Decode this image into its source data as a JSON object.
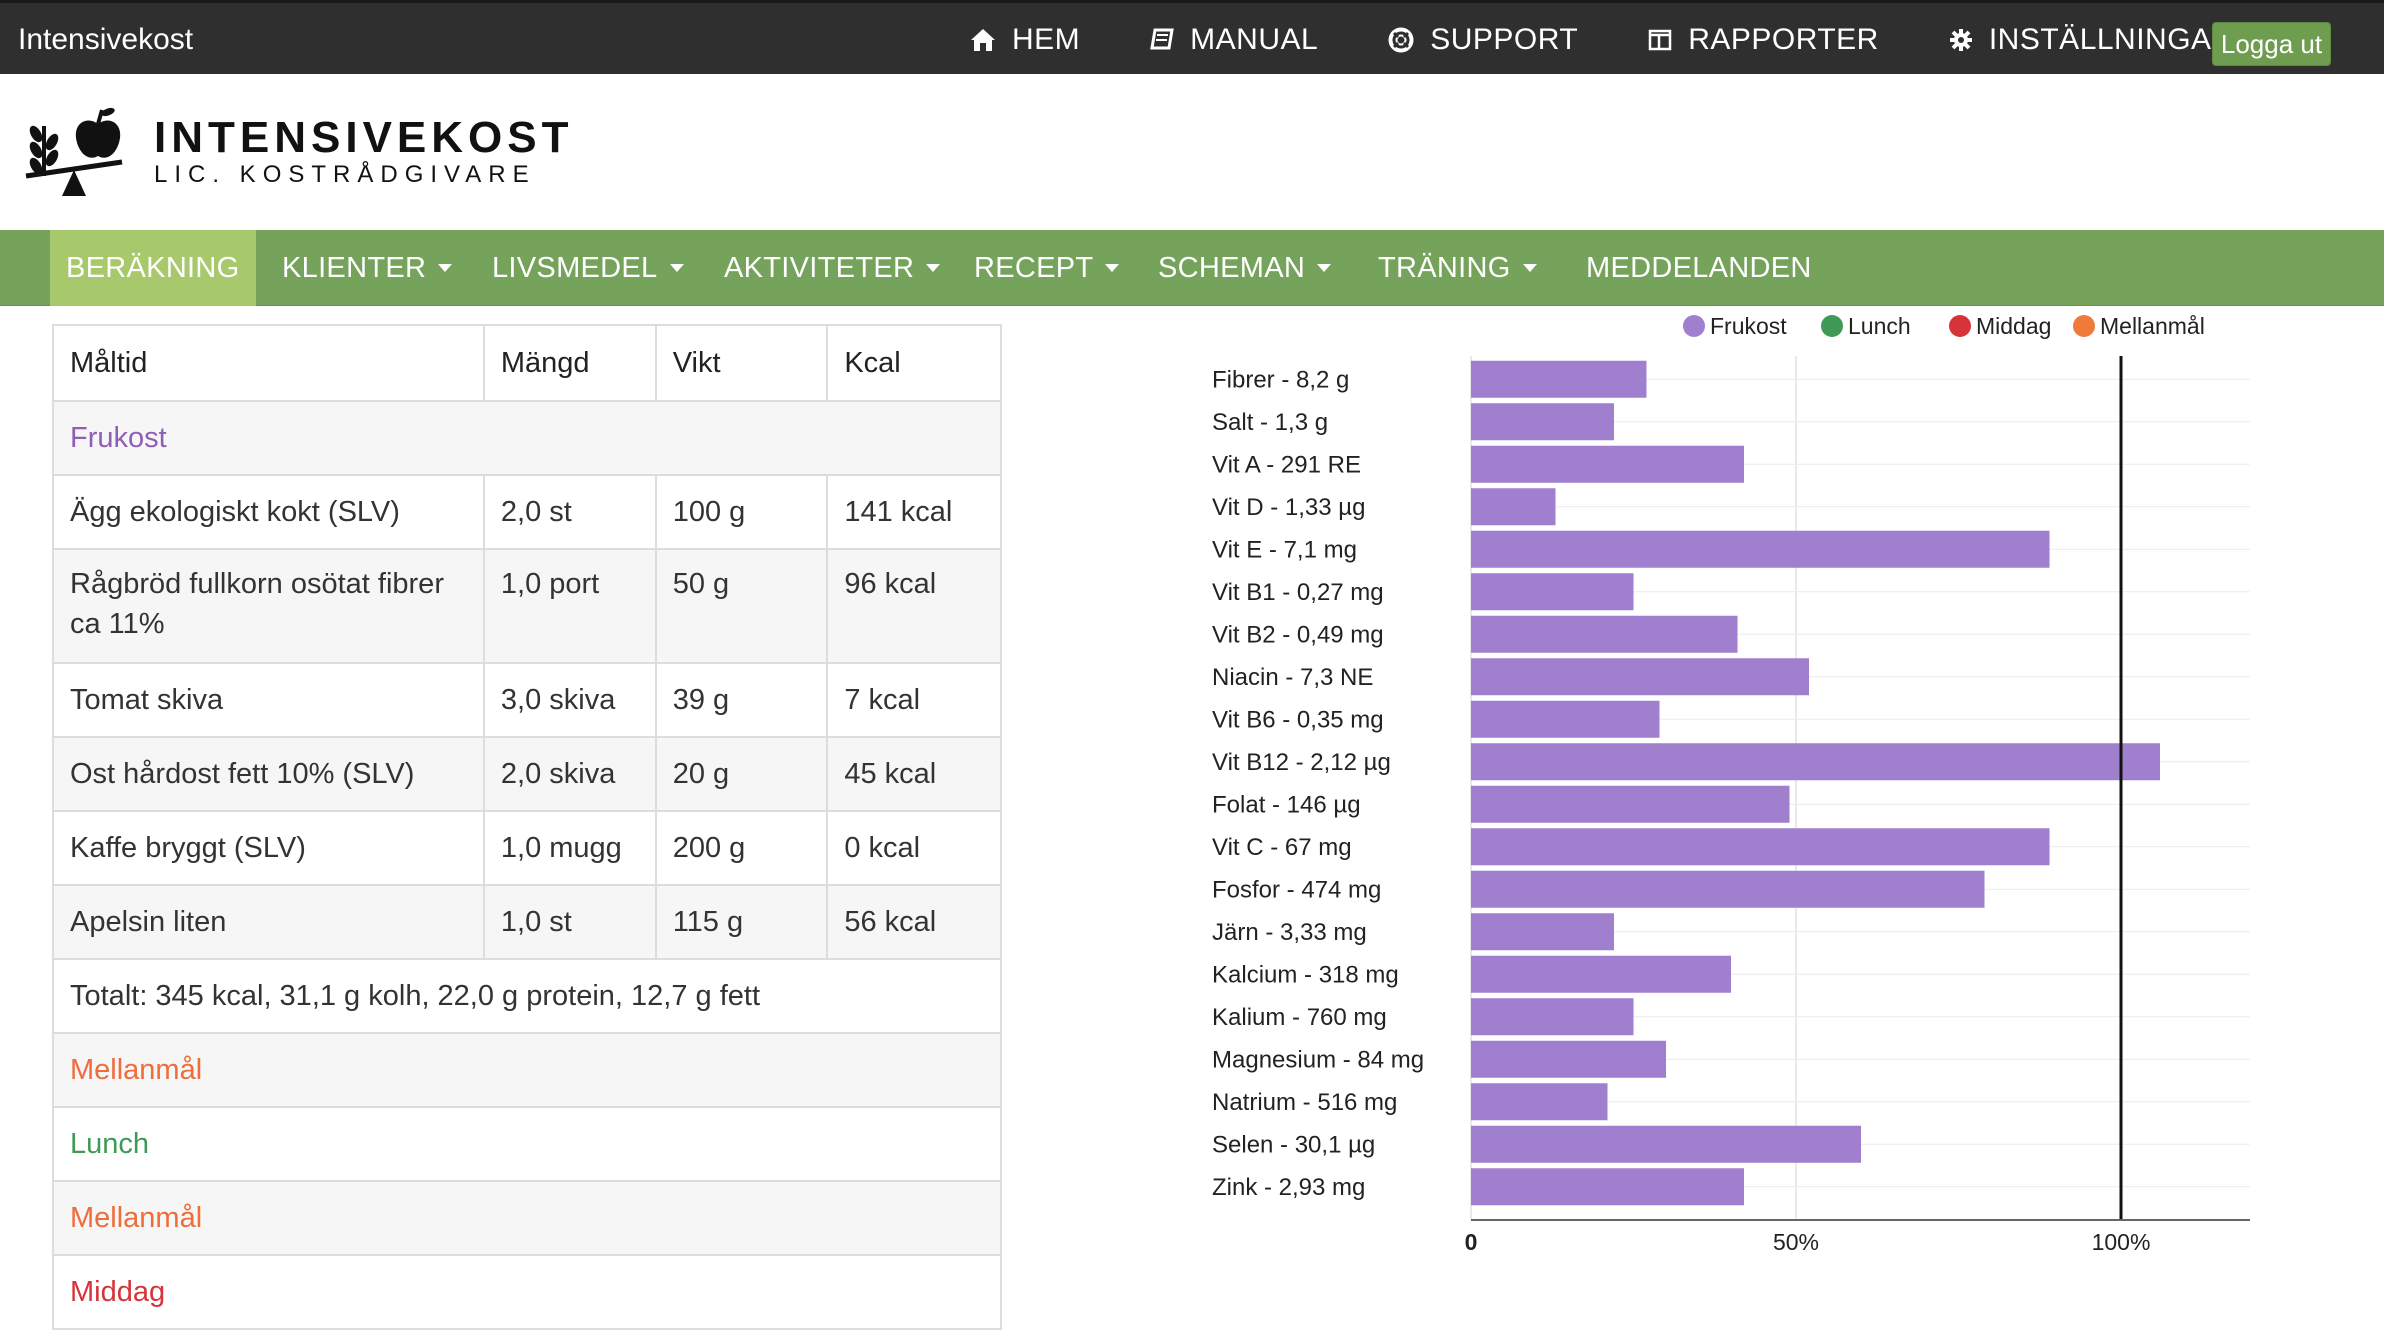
{
  "topbar": {
    "brand": "Intensivekost",
    "nav": [
      {
        "label": "HEM",
        "icon": "home-icon"
      },
      {
        "label": "MANUAL",
        "icon": "book-icon"
      },
      {
        "label": "SUPPORT",
        "icon": "lifebuoy-icon"
      },
      {
        "label": "RAPPORTER",
        "icon": "columns-icon"
      },
      {
        "label": "INSTÄLLNINGAR",
        "icon": "gear-icon"
      }
    ],
    "logout": "Logga ut"
  },
  "logo": {
    "title": "INTENSIVEKOST",
    "subtitle": "LIC. KOSTRÅDGIVARE"
  },
  "mainnav": [
    {
      "label": "BERÄKNING",
      "dropdown": false
    },
    {
      "label": "KLIENTER",
      "dropdown": true
    },
    {
      "label": "LIVSMEDEL",
      "dropdown": true
    },
    {
      "label": "AKTIVITETER",
      "dropdown": true
    },
    {
      "label": "RECEPT",
      "dropdown": true
    },
    {
      "label": "SCHEMAN",
      "dropdown": true
    },
    {
      "label": "TRÄNING",
      "dropdown": true
    },
    {
      "label": "MEDDELANDEN",
      "dropdown": false
    }
  ],
  "table": {
    "headers": [
      "Måltid",
      "Mängd",
      "Vikt",
      "Kcal"
    ],
    "frukost_label": "Frukost",
    "rows": [
      {
        "name": "Ägg ekologiskt kokt (SLV)",
        "amount": "2,0 st",
        "weight": "100 g",
        "kcal": "141 kcal"
      },
      {
        "name": "Rågbröd fullkorn osötat fibrer ca 11%",
        "amount": "1,0 port",
        "weight": "50 g",
        "kcal": "96 kcal"
      },
      {
        "name": "Tomat skiva",
        "amount": "3,0 skiva",
        "weight": "39 g",
        "kcal": "7 kcal"
      },
      {
        "name": "Ost hårdost fett 10% (SLV)",
        "amount": "2,0 skiva",
        "weight": "20 g",
        "kcal": "45 kcal"
      },
      {
        "name": "Kaffe bryggt (SLV)",
        "amount": "1,0 mugg",
        "weight": "200 g",
        "kcal": "0 kcal"
      },
      {
        "name": "Apelsin liten",
        "amount": "1,0 st",
        "weight": "115 g",
        "kcal": "56 kcal"
      }
    ],
    "total": "Totalt: 345 kcal, 31,1 g kolh, 22,0 g protein, 12,7 g fett",
    "meals_after": [
      "Mellanmål",
      "Lunch",
      "Mellanmål",
      "Middag"
    ]
  },
  "colors": {
    "frukost": "#a07fcf",
    "lunch": "#3f9a57",
    "middag": "#d6343a",
    "mellanmal": "#ef7a3b"
  },
  "chart_data": {
    "type": "bar",
    "orientation": "horizontal",
    "legend": [
      "Frukost",
      "Lunch",
      "Middag",
      "Mellanmål"
    ],
    "legend_position": "top-right",
    "categories": [
      "Fibrer - 8,2 g",
      "Salt - 1,3 g",
      "Vit A - 291 RE",
      "Vit D - 1,33 µg",
      "Vit E - 7,1 mg",
      "Vit B1 - 0,27 mg",
      "Vit B2 - 0,49 mg",
      "Niacin - 7,3 NE",
      "Vit B6 - 0,35 mg",
      "Vit B12 - 2,12 µg",
      "Folat - 146 µg",
      "Vit C - 67 mg",
      "Fosfor - 474 mg",
      "Järn - 3,33 mg",
      "Kalcium - 318 mg",
      "Kalium - 760 mg",
      "Magnesium - 84 mg",
      "Natrium - 516 mg",
      "Selen - 30,1 µg",
      "Zink - 2,93 mg"
    ],
    "series": [
      {
        "name": "Frukost",
        "values": [
          27,
          22,
          42,
          13,
          89,
          25,
          41,
          52,
          29,
          106,
          49,
          89,
          79,
          22,
          40,
          25,
          30,
          21,
          60,
          42
        ]
      }
    ],
    "xlim": [
      0,
      120
    ],
    "xticks": [
      0,
      50,
      100
    ],
    "xtick_labels": [
      "0",
      "50%",
      "100%"
    ],
    "reference_line": 100
  }
}
